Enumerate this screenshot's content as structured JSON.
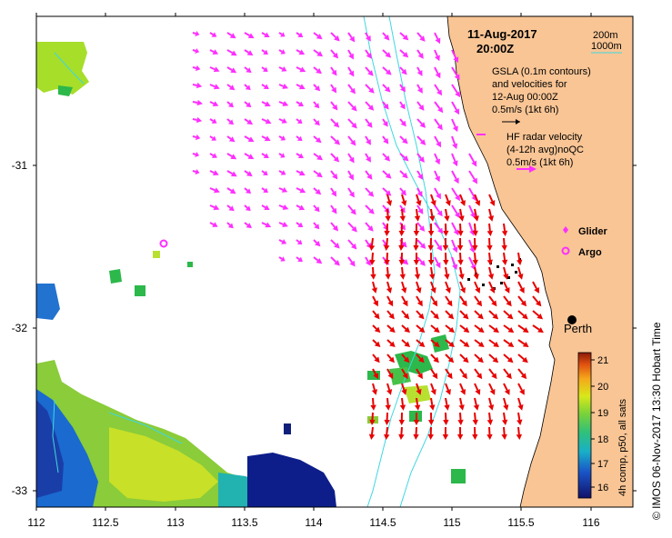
{
  "map": {
    "datetime": "11-Aug-2017",
    "time": "20:00Z",
    "depth_labels": [
      "200m",
      "1000m"
    ],
    "gsla_legend": [
      "GSLA (0.1m contours)",
      "and velocities for",
      "12-Aug 00:00Z",
      "0.5m/s (1kt 6h)"
    ],
    "hf_legend": [
      "HF radar velocity",
      "(4-12h avg)noQC",
      "0.5m/s (1kt 6h)"
    ],
    "glider_label": "Glider",
    "argo_label": "Argo",
    "city_label": "Perth",
    "colorbar_label": "4h comp, p50, all sats",
    "colorbar_ticks": [
      "21",
      "20",
      "19",
      "18",
      "17",
      "16"
    ],
    "footer": "©  IMOS 06-Nov-2017 13:30 Hobart Time",
    "x_ticks": [
      "112",
      "112.5",
      "113",
      "113.5",
      "114",
      "114.5",
      "115",
      "115.5",
      "116"
    ],
    "y_ticks": [
      "-31",
      "-32",
      "-33"
    ],
    "colors": {
      "land": "#f9c595",
      "hf_vector": "#ff2eff",
      "gsla_vector": "#e80000",
      "isobath": "#3fd8e0",
      "glider": "#000000"
    }
  }
}
